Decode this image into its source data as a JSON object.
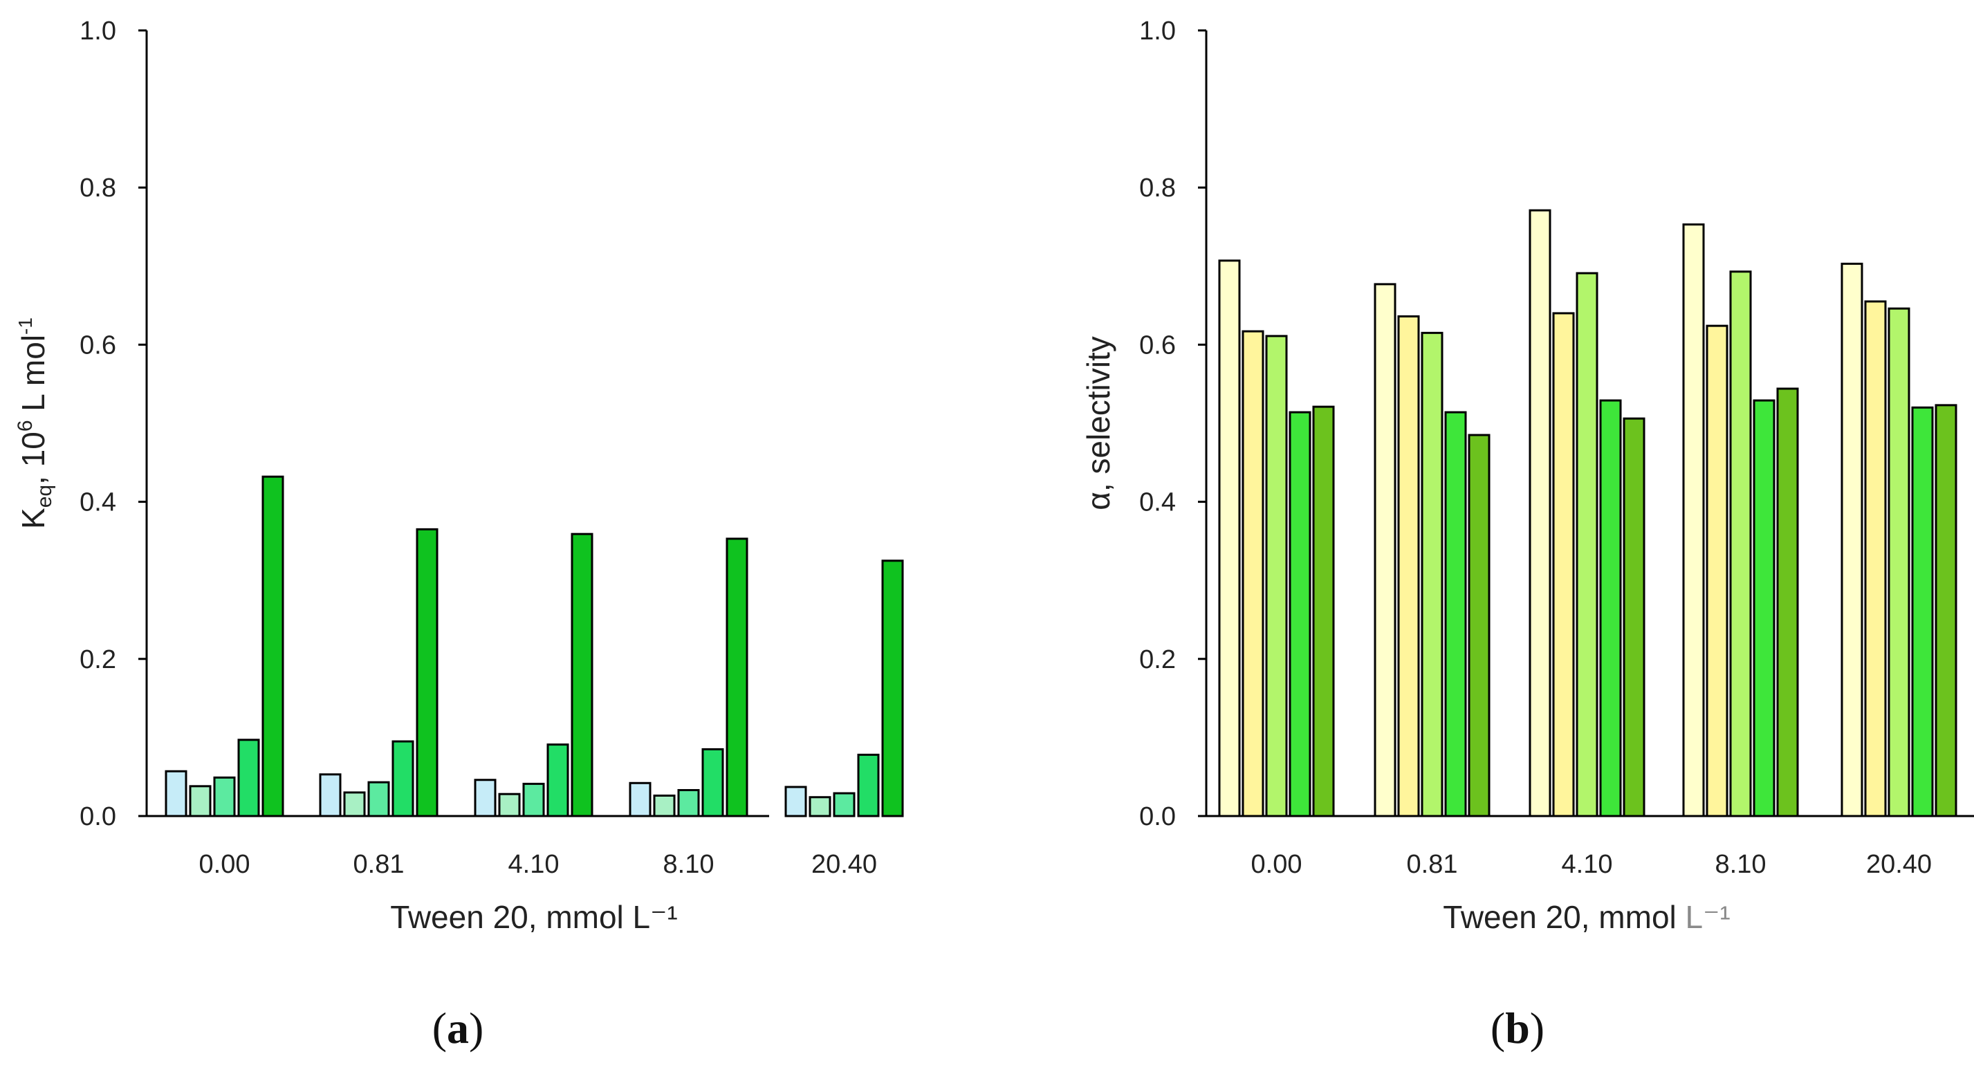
{
  "chart_data": [
    {
      "type": "bar",
      "panel_label": {
        "open": "(",
        "letter": "a",
        "close": ")"
      },
      "title": "",
      "xlabel": "Tween 20, mmol L⁻¹",
      "ylabel": {
        "main": "K",
        "sub": "eq",
        "mid": ", 10",
        "sup": "6",
        "unit": " L mol",
        "unit_sup": "-1"
      },
      "categories": [
        "0.00",
        "0.81",
        "4.10",
        "8.10",
        "20.40"
      ],
      "ylim": [
        0,
        1.0
      ],
      "yticks": [
        "0.0",
        "0.2",
        "0.4",
        "0.6",
        "0.8",
        "1.0"
      ],
      "grid": false,
      "series": [
        {
          "name": "series 1",
          "color": "#C6ECF8",
          "values": [
            0.057,
            0.053,
            0.046,
            0.042,
            0.037
          ]
        },
        {
          "name": "series 2",
          "color": "#A8F0C4",
          "values": [
            0.038,
            0.03,
            0.028,
            0.026,
            0.024
          ]
        },
        {
          "name": "series 3",
          "color": "#5CEAA0",
          "values": [
            0.049,
            0.043,
            0.041,
            0.033,
            0.029
          ]
        },
        {
          "name": "series 4",
          "color": "#22DD66",
          "values": [
            0.097,
            0.095,
            0.091,
            0.085,
            0.078
          ]
        },
        {
          "name": "series 5",
          "color": "#0FC21F",
          "values": [
            0.432,
            0.365,
            0.359,
            0.353,
            0.325
          ]
        }
      ]
    },
    {
      "type": "bar",
      "panel_label": {
        "open": "(",
        "letter": "b",
        "close": ")"
      },
      "title": "",
      "xlabel": {
        "main": "Tween 20, mmol ",
        "unit": "L⁻¹"
      },
      "ylabel": "α, selectivity",
      "categories": [
        "0.00",
        "0.81",
        "4.10",
        "8.10",
        "20.40"
      ],
      "ylim": [
        0,
        1.0
      ],
      "yticks": [
        "0.0",
        "0.2",
        "0.4",
        "0.6",
        "0.8",
        "1.0"
      ],
      "grid": false,
      "series": [
        {
          "name": "series 1",
          "color": "#FFFFCC",
          "values": [
            0.707,
            0.677,
            0.771,
            0.753,
            0.703
          ]
        },
        {
          "name": "series 2",
          "color": "#FFF59C",
          "values": [
            0.617,
            0.636,
            0.64,
            0.624,
            0.655
          ]
        },
        {
          "name": "series 3",
          "color": "#B2F56B",
          "values": [
            0.611,
            0.615,
            0.691,
            0.693,
            0.646
          ]
        },
        {
          "name": "series 4",
          "color": "#3EE63A",
          "values": [
            0.514,
            0.514,
            0.529,
            0.529,
            0.52
          ]
        },
        {
          "name": "series 5",
          "color": "#6CC21E",
          "values": [
            0.521,
            0.485,
            0.506,
            0.544,
            0.523
          ]
        }
      ]
    }
  ]
}
